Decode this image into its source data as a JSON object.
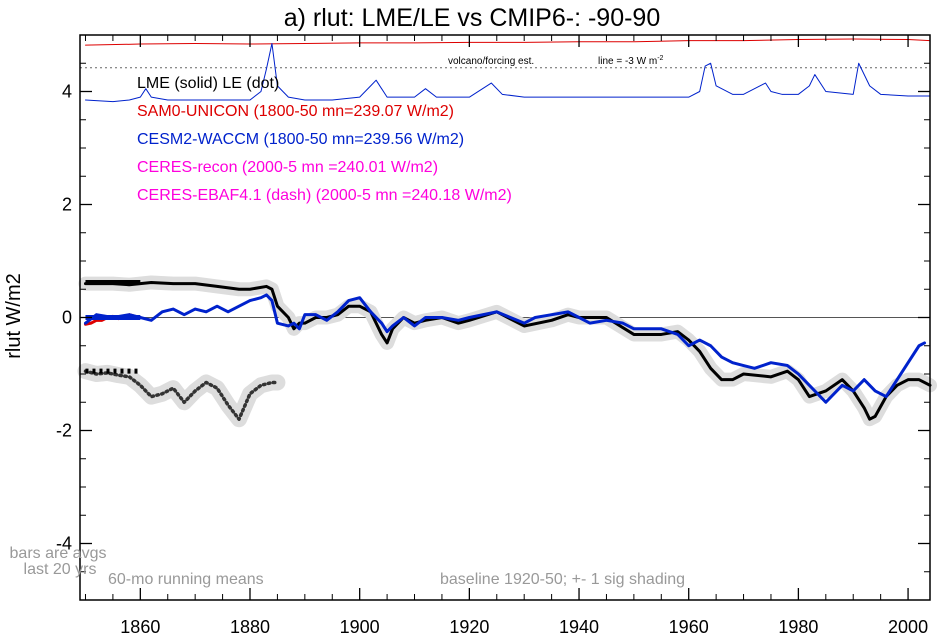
{
  "chart_data": {
    "type": "line",
    "title": "a) rlut: LME/LE vs CMIP6-: -90-90",
    "ylabel": "rlut W/m2",
    "xlabel": "",
    "xlim": [
      1849,
      2004
    ],
    "ylim": [
      -5,
      5
    ],
    "x_ticks": [
      "1860",
      "1880",
      "1900",
      "1920",
      "1940",
      "1960",
      "1980",
      "2000"
    ],
    "y_ticks": [
      "-4",
      "-2",
      "0",
      "2",
      "4"
    ],
    "legend": [
      {
        "text": "LME (solid)   LE (dot)",
        "color": "#000000"
      },
      {
        "text": "SAM0-UNICON (1800-50 mn=239.07 W/m2)",
        "color": "#dd0000"
      },
      {
        "text": "CESM2-WACCM (1800-50 mn=239.56 W/m2)",
        "color": "#0022cc"
      },
      {
        "text": "CERES-recon (2000-5 mn =240.01 W/m2)",
        "color": "#ff00dd"
      },
      {
        "text": "CERES-EBAF4.1 (dash) (2000-5 mn =240.18 W/m2)",
        "color": "#ff00dd"
      }
    ],
    "annotations": {
      "volcano": "volcano/forcing est.",
      "line_scale": "line = -3 W m",
      "line_scale_sup": "-2",
      "bars_note_1": "bars are avgs",
      "bars_note_2": "last 20 yrs",
      "running": "60-mo running means",
      "baseline": "baseline 1920-50; +- 1 sig shading"
    },
    "series": [
      {
        "name": "LME (solid)",
        "color": "#000000",
        "style": "solid",
        "x": [
          1850,
          1855,
          1858,
          1862,
          1866,
          1870,
          1874,
          1878,
          1880,
          1883,
          1884,
          1885,
          1887,
          1888,
          1889,
          1890,
          1892,
          1894,
          1896,
          1898,
          1900,
          1902,
          1904,
          1905,
          1906,
          1908,
          1910,
          1912,
          1915,
          1918,
          1920,
          1925,
          1930,
          1935,
          1938,
          1940,
          1945,
          1950,
          1955,
          1958,
          1960,
          1962,
          1964,
          1966,
          1968,
          1970,
          1975,
          1978,
          1980,
          1982,
          1985,
          1988,
          1990,
          1992,
          1993,
          1994,
          1996,
          1998,
          2000,
          2002,
          2004
        ],
        "y": [
          0.6,
          0.6,
          0.58,
          0.62,
          0.6,
          0.6,
          0.55,
          0.5,
          0.5,
          0.55,
          0.5,
          0.2,
          0,
          -0.2,
          -0.1,
          -0.1,
          0,
          0,
          0.05,
          0.2,
          0.2,
          0.1,
          -0.3,
          -0.45,
          -0.2,
          0,
          -0.1,
          -0.05,
          0,
          -0.1,
          -0.05,
          0.1,
          -0.15,
          -0.05,
          0.05,
          0,
          0,
          -0.3,
          -0.3,
          -0.25,
          -0.4,
          -0.6,
          -0.9,
          -1.1,
          -1.1,
          -1,
          -1.05,
          -0.95,
          -1.1,
          -1.4,
          -1.3,
          -1.1,
          -1.3,
          -1.6,
          -1.8,
          -1.75,
          -1.4,
          -1.2,
          -1.1,
          -1.1,
          -1.2
        ]
      },
      {
        "name": "CESM2-WACCM",
        "color": "#0022cc",
        "style": "solid",
        "x": [
          1850,
          1852,
          1855,
          1858,
          1860,
          1862,
          1864,
          1866,
          1868,
          1870,
          1872,
          1874,
          1876,
          1878,
          1880,
          1882,
          1883,
          1884,
          1885,
          1887,
          1888,
          1889,
          1890,
          1892,
          1894,
          1896,
          1898,
          1900,
          1902,
          1904,
          1905,
          1906,
          1908,
          1910,
          1912,
          1915,
          1918,
          1920,
          1925,
          1930,
          1932,
          1935,
          1938,
          1940,
          1942,
          1945,
          1948,
          1950,
          1955,
          1958,
          1960,
          1962,
          1964,
          1966,
          1968,
          1970,
          1972,
          1975,
          1978,
          1980,
          1982,
          1985,
          1988,
          1990,
          1992,
          1994,
          1996,
          1998,
          2000,
          2002,
          2003
        ],
        "y": [
          -0.1,
          0.05,
          0,
          0.05,
          0,
          -0.05,
          0.1,
          0.15,
          0.05,
          0.15,
          0.1,
          0.2,
          0.1,
          0.2,
          0.3,
          0.35,
          0.4,
          0.3,
          -0.1,
          -0.15,
          -0.1,
          -0.2,
          0.05,
          0.05,
          -0.05,
          0.1,
          0.3,
          0.35,
          0.1,
          -0.1,
          -0.25,
          -0.15,
          0,
          -0.15,
          0,
          0,
          -0.05,
          0,
          0.1,
          -0.1,
          0,
          0.05,
          0.1,
          0,
          -0.1,
          -0.05,
          -0.1,
          -0.2,
          -0.2,
          -0.3,
          -0.5,
          -0.4,
          -0.5,
          -0.7,
          -0.8,
          -0.85,
          -0.9,
          -0.8,
          -0.85,
          -1.0,
          -1.2,
          -1.5,
          -1.2,
          -1.3,
          -1.1,
          -1.3,
          -1.4,
          -1.1,
          -0.8,
          -0.5,
          -0.45
        ]
      },
      {
        "name": "SAM0-UNICON",
        "color": "#dd0000",
        "style": "solid",
        "x": [
          1850,
          1851,
          1852,
          1853,
          1854,
          1855,
          1856,
          1857,
          1858,
          1859,
          1860
        ],
        "y": [
          -0.12,
          -0.1,
          -0.05,
          -0.05,
          0,
          0.02,
          -0.02,
          0,
          0.05,
          0.02,
          0
        ]
      },
      {
        "name": "LE (dot)",
        "color": "#333333",
        "style": "dot",
        "x": [
          1850,
          1852,
          1854,
          1856,
          1858,
          1860,
          1862,
          1864,
          1866,
          1868,
          1870,
          1872,
          1874,
          1876,
          1878,
          1880,
          1882,
          1884,
          1885
        ],
        "y": [
          -0.95,
          -1.0,
          -0.98,
          -1.02,
          -1.05,
          -1.2,
          -1.4,
          -1.35,
          -1.25,
          -1.5,
          -1.3,
          -1.15,
          -1.25,
          -1.55,
          -1.8,
          -1.35,
          -1.2,
          -1.15,
          -1.15
        ]
      },
      {
        "name": "SAM0-UNICON forcing",
        "color": "#dd0000",
        "style": "thin",
        "x": [
          1850,
          1860,
          1870,
          1880,
          1890,
          1900,
          1910,
          1920,
          1930,
          1940,
          1950,
          1960,
          1970,
          1980,
          1990,
          2000,
          2004
        ],
        "y": [
          4.82,
          4.84,
          4.85,
          4.84,
          4.85,
          4.86,
          4.86,
          4.87,
          4.87,
          4.88,
          4.88,
          4.9,
          4.9,
          4.92,
          4.93,
          4.92,
          4.9
        ]
      },
      {
        "name": "CESM2-WACCM forcing",
        "color": "#0022cc",
        "style": "thin",
        "x": [
          1850,
          1855,
          1858,
          1860,
          1861,
          1862,
          1865,
          1870,
          1875,
          1880,
          1882,
          1883,
          1884,
          1885,
          1887,
          1890,
          1895,
          1900,
          1902,
          1903,
          1905,
          1910,
          1912,
          1914,
          1920,
          1924,
          1926,
          1930,
          1940,
          1950,
          1960,
          1962,
          1963,
          1964,
          1965,
          1968,
          1970,
          1974,
          1975,
          1977,
          1980,
          1982,
          1983,
          1985,
          1990,
          1991,
          1993,
          1995,
          2000,
          2004
        ],
        "y": [
          3.85,
          3.82,
          3.85,
          3.9,
          4.05,
          3.9,
          3.85,
          3.85,
          3.85,
          3.85,
          4.0,
          4.4,
          4.85,
          4.1,
          3.9,
          3.85,
          3.85,
          3.9,
          4.1,
          4.2,
          3.9,
          3.9,
          4.05,
          3.9,
          3.9,
          4.15,
          3.95,
          3.9,
          3.9,
          3.9,
          3.9,
          4.0,
          4.45,
          4.5,
          4.1,
          3.95,
          3.95,
          4.15,
          4.0,
          3.95,
          3.95,
          4.1,
          4.3,
          4.0,
          3.95,
          4.5,
          4.1,
          3.95,
          3.92,
          3.92
        ]
      }
    ],
    "bars": [
      {
        "series": "LME (solid)",
        "color": "#000000",
        "style": "solid",
        "x": [
          1850,
          1860
        ],
        "y": 0.62
      },
      {
        "series": "SAM0-UNICON",
        "color": "#dd0000",
        "style": "solid",
        "x": [
          1850,
          1856
        ],
        "y": 0.0
      },
      {
        "series": "CESM2-WACCM",
        "color": "#0022cc",
        "style": "solid",
        "x": [
          1850,
          1860
        ],
        "y": 0.0
      },
      {
        "series": "LE (dot)",
        "color": "#000000",
        "style": "dot",
        "x": [
          1850,
          1860
        ],
        "y": -0.95
      }
    ],
    "reference_lines": {
      "zero": 0,
      "volcano_dotted": 4.42
    }
  }
}
